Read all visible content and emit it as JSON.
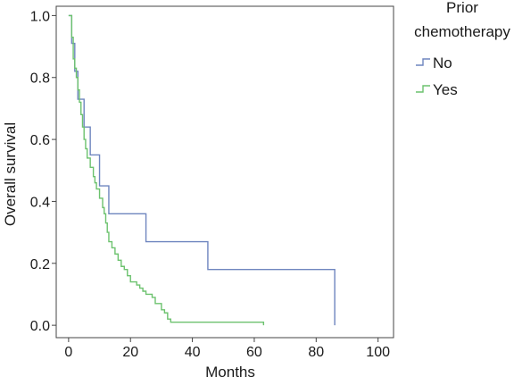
{
  "chart_data": {
    "type": "line",
    "xlabel": "Months",
    "ylabel": "Overall survival",
    "xlim": [
      -4,
      105
    ],
    "ylim": [
      -0.04,
      1.03
    ],
    "xticks": [
      0,
      20,
      40,
      60,
      80,
      100
    ],
    "yticks": [
      0.0,
      0.2,
      0.4,
      0.6,
      0.8,
      1.0
    ],
    "ytick_labels": [
      "0.0",
      "0.2",
      "0.4",
      "0.6",
      "0.8",
      "1.0"
    ],
    "grid": false,
    "legend": {
      "title": "Prior chemotherapy",
      "position": "top-right-outside"
    },
    "series": [
      {
        "name": "No",
        "color": "#6e85bf",
        "step": true,
        "x": [
          0,
          1,
          2,
          3,
          5,
          7,
          10,
          13,
          25,
          45,
          86
        ],
        "y": [
          1.0,
          0.91,
          0.82,
          0.73,
          0.64,
          0.55,
          0.45,
          0.36,
          0.27,
          0.18,
          0.09
        ],
        "end_x": 86,
        "end_y": 0.0
      },
      {
        "name": "Yes",
        "color": "#6cc26e",
        "step": true,
        "x": [
          0,
          1,
          1.5,
          2,
          2.5,
          3,
          3.5,
          4,
          4.5,
          5,
          5.5,
          6,
          7,
          8,
          8.5,
          9,
          10,
          11,
          11.5,
          12,
          12.5,
          13,
          14,
          15,
          16,
          17,
          18,
          19,
          20,
          22,
          23,
          24,
          25,
          27,
          28,
          30,
          31,
          32,
          33
        ],
        "y": [
          1.0,
          0.93,
          0.86,
          0.83,
          0.8,
          0.76,
          0.72,
          0.68,
          0.64,
          0.6,
          0.57,
          0.54,
          0.51,
          0.48,
          0.46,
          0.44,
          0.41,
          0.38,
          0.36,
          0.33,
          0.3,
          0.27,
          0.25,
          0.23,
          0.21,
          0.19,
          0.18,
          0.16,
          0.14,
          0.13,
          0.12,
          0.11,
          0.1,
          0.09,
          0.07,
          0.05,
          0.04,
          0.02,
          0.01
        ],
        "end_x": 63,
        "end_y": 0.0
      }
    ]
  }
}
